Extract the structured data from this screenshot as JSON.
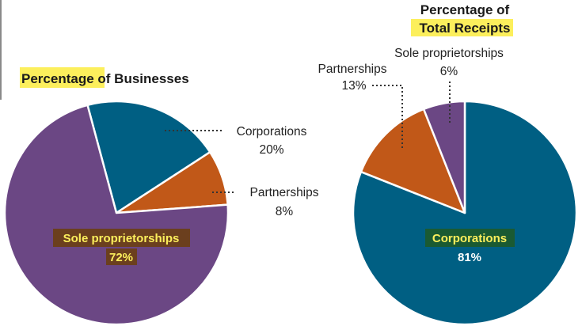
{
  "colors": {
    "corporations": "#005f83",
    "partnerships": "#c15818",
    "sole_proprietorships": "#6b4784",
    "highlight": "#fcef5c",
    "sole_label_bg": "#6b3f1e",
    "corp_label_bg": "#1a5a32",
    "inside_label_text": "#fcef5c",
    "inside_value_text": "#ffffff"
  },
  "chart_data": [
    {
      "type": "pie",
      "title_highlight": "Percentage",
      "title_rest": " of Businesses",
      "slices": [
        {
          "key": "corporations",
          "label": "Corporations",
          "value": 20,
          "value_label": "20%"
        },
        {
          "key": "partnerships",
          "label": "Partnerships",
          "value": 8,
          "value_label": "8%"
        },
        {
          "key": "sole_proprietorships",
          "label": "Sole proprietorships",
          "value": 72,
          "value_label": "72%"
        }
      ]
    },
    {
      "type": "pie",
      "title_line1": "Percentage of",
      "title_highlight": "Total Receipts",
      "slices": [
        {
          "key": "corporations",
          "label": "Corporations",
          "value": 81,
          "value_label": "81%"
        },
        {
          "key": "partnerships",
          "label": "Partnerships",
          "value": 13,
          "value_label": "13%"
        },
        {
          "key": "sole_proprietorships",
          "label": "Sole proprietorships",
          "value": 6,
          "value_label": "6%"
        }
      ]
    }
  ]
}
